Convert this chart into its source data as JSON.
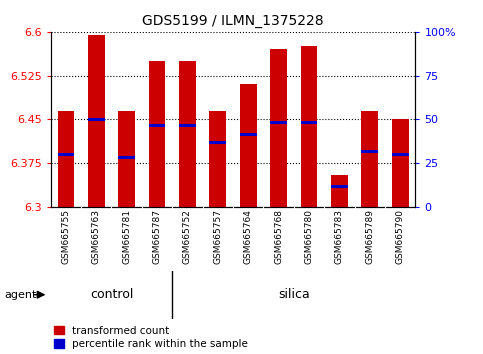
{
  "title": "GDS5199 / ILMN_1375228",
  "samples": [
    "GSM665755",
    "GSM665763",
    "GSM665781",
    "GSM665787",
    "GSM665752",
    "GSM665757",
    "GSM665764",
    "GSM665768",
    "GSM665780",
    "GSM665783",
    "GSM665789",
    "GSM665790"
  ],
  "groups": [
    "control",
    "control",
    "control",
    "control",
    "silica",
    "silica",
    "silica",
    "silica",
    "silica",
    "silica",
    "silica",
    "silica"
  ],
  "bar_top": [
    6.465,
    6.595,
    6.465,
    6.55,
    6.55,
    6.465,
    6.51,
    6.57,
    6.575,
    6.355,
    6.465,
    6.45
  ],
  "bar_bottom": 6.3,
  "percentile_values": [
    6.39,
    6.45,
    6.385,
    6.44,
    6.44,
    6.41,
    6.425,
    6.445,
    6.445,
    6.335,
    6.395,
    6.39
  ],
  "ylim_left": [
    6.3,
    6.6
  ],
  "yticks_left": [
    6.3,
    6.375,
    6.45,
    6.525,
    6.6
  ],
  "yticks_right": [
    0,
    25,
    50,
    75,
    100
  ],
  "bar_color": "#cc0000",
  "percentile_color": "#0000cc",
  "bar_width": 0.55,
  "group_divider": 4,
  "n_control": 4,
  "n_silica": 8,
  "legend_items": [
    "transformed count",
    "percentile rank within the sample"
  ],
  "legend_colors": [
    "#cc0000",
    "#0000cc"
  ],
  "green_color": "#90ee90",
  "gray_color": "#c8c8c8"
}
